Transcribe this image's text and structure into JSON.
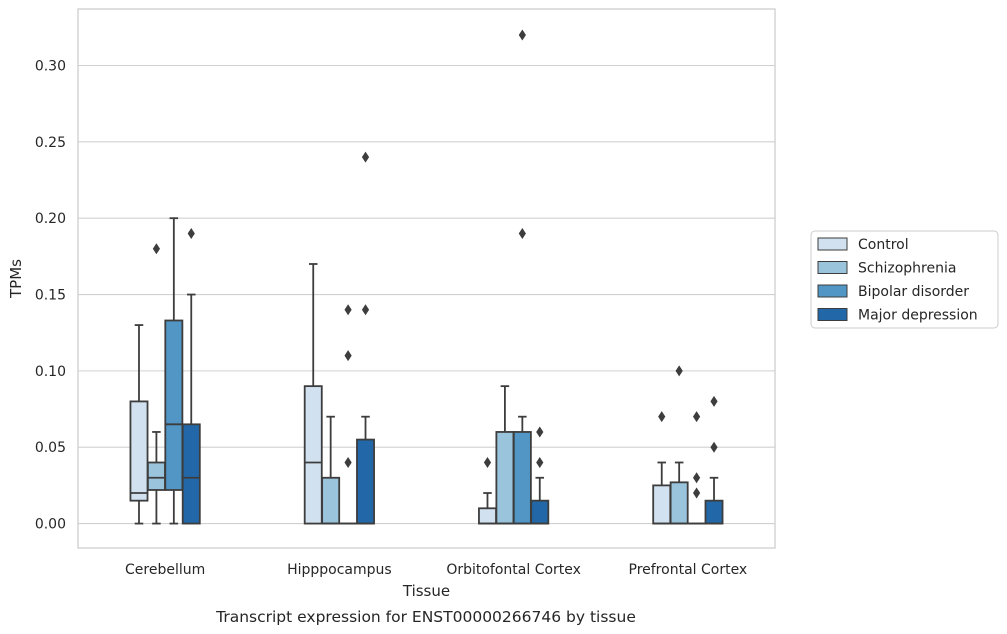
{
  "chart_data": {
    "type": "boxplot",
    "title": "",
    "caption": "Transcript expression for ENST00000266746 by tissue",
    "xlabel": "Tissue",
    "ylabel": "TPMs",
    "ylim": [
      -0.016,
      0.337
    ],
    "yticks": [
      0.0,
      0.05,
      0.1,
      0.15,
      0.2,
      0.25,
      0.3
    ],
    "ytick_labels": [
      "0.00",
      "0.05",
      "0.10",
      "0.15",
      "0.20",
      "0.25",
      "0.30"
    ],
    "grid": "horizontal",
    "legend_position": "right",
    "categories": [
      "Cerebellum",
      "Hipppocampus",
      "Orbitofontal Cortex",
      "Prefrontal Cortex"
    ],
    "series": [
      {
        "name": "Control",
        "color": "#d1e1f0",
        "boxes": [
          {
            "whislo": 0.0,
            "q1": 0.015,
            "med": 0.02,
            "q3": 0.08,
            "whishi": 0.13,
            "fliers": []
          },
          {
            "whislo": 0.0,
            "q1": 0.0,
            "med": 0.04,
            "q3": 0.09,
            "whishi": 0.17,
            "fliers": []
          },
          {
            "whislo": 0.0,
            "q1": 0.0,
            "med": 0.0,
            "q3": 0.01,
            "whishi": 0.02,
            "fliers": [
              0.04
            ]
          },
          {
            "whislo": 0.0,
            "q1": 0.0,
            "med": 0.0,
            "q3": 0.025,
            "whishi": 0.04,
            "fliers": [
              0.07
            ]
          }
        ]
      },
      {
        "name": "Schizophrenia",
        "color": "#9ac3dc",
        "boxes": [
          {
            "whislo": 0.0,
            "q1": 0.022,
            "med": 0.03,
            "q3": 0.04,
            "whishi": 0.06,
            "fliers": [
              0.18
            ]
          },
          {
            "whislo": 0.0,
            "q1": 0.0,
            "med": 0.0,
            "q3": 0.03,
            "whishi": 0.07,
            "fliers": []
          },
          {
            "whislo": 0.0,
            "q1": 0.0,
            "med": 0.0,
            "q3": 0.06,
            "whishi": 0.09,
            "fliers": []
          },
          {
            "whislo": 0.0,
            "q1": 0.0,
            "med": 0.0,
            "q3": 0.027,
            "whishi": 0.04,
            "fliers": [
              0.1
            ]
          }
        ]
      },
      {
        "name": "Bipolar disorder",
        "color": "#5196c5",
        "boxes": [
          {
            "whislo": 0.0,
            "q1": 0.022,
            "med": 0.065,
            "q3": 0.133,
            "whishi": 0.2,
            "fliers": []
          },
          {
            "whislo": 0.0,
            "q1": 0.0,
            "med": 0.0,
            "q3": 0.0,
            "whishi": 0.0,
            "fliers": [
              0.04,
              0.11,
              0.14
            ]
          },
          {
            "whislo": 0.0,
            "q1": 0.0,
            "med": 0.0,
            "q3": 0.06,
            "whishi": 0.07,
            "fliers": [
              0.19,
              0.32
            ]
          },
          {
            "whislo": 0.0,
            "q1": 0.0,
            "med": 0.0,
            "q3": 0.0,
            "whishi": 0.0,
            "fliers": [
              0.02,
              0.03,
              0.07
            ]
          }
        ]
      },
      {
        "name": "Major depression",
        "color": "#2268a8",
        "boxes": [
          {
            "whislo": 0.0,
            "q1": 0.0,
            "med": 0.03,
            "q3": 0.065,
            "whishi": 0.15,
            "fliers": [
              0.19
            ]
          },
          {
            "whislo": 0.0,
            "q1": 0.0,
            "med": 0.0,
            "q3": 0.055,
            "whishi": 0.07,
            "fliers": [
              0.14,
              0.24
            ]
          },
          {
            "whislo": 0.0,
            "q1": 0.0,
            "med": 0.0,
            "q3": 0.015,
            "whishi": 0.03,
            "fliers": [
              0.04,
              0.06
            ]
          },
          {
            "whislo": 0.0,
            "q1": 0.0,
            "med": 0.0,
            "q3": 0.015,
            "whishi": 0.03,
            "fliers": [
              0.05,
              0.08
            ]
          }
        ]
      }
    ]
  }
}
